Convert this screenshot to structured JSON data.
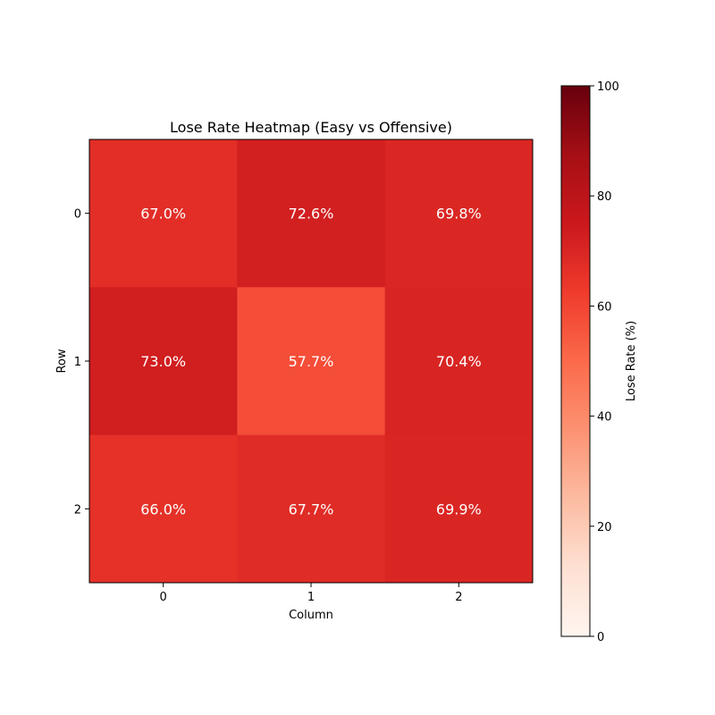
{
  "chart_data": {
    "type": "heatmap",
    "title": "Lose Rate Heatmap (Easy vs Offensive)",
    "xlabel": "Column",
    "ylabel": "Row",
    "x_ticks": [
      "0",
      "1",
      "2"
    ],
    "y_ticks": [
      "0",
      "1",
      "2"
    ],
    "values": [
      [
        67.0,
        72.6,
        69.8
      ],
      [
        73.0,
        57.7,
        70.4
      ],
      [
        66.0,
        67.7,
        69.9
      ]
    ],
    "cell_labels": [
      [
        "67.0%",
        "72.6%",
        "69.8%"
      ],
      [
        "73.0%",
        "57.7%",
        "70.4%"
      ],
      [
        "66.0%",
        "67.7%",
        "69.9%"
      ]
    ],
    "colormap": "Reds",
    "vmin": 0,
    "vmax": 100,
    "colorbar": {
      "label": "Lose Rate (%)",
      "ticks": [
        "0",
        "20",
        "40",
        "60",
        "80",
        "100"
      ]
    },
    "grid": false,
    "colorbar_position": "right"
  }
}
